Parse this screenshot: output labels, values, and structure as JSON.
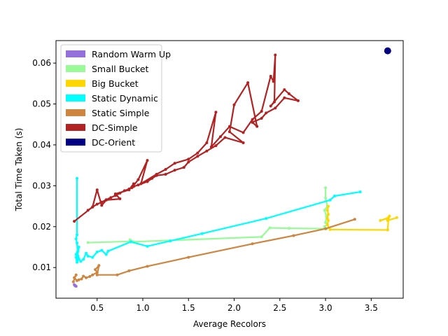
{
  "chart_data": {
    "type": "line",
    "title": "",
    "xlabel": "Average Recolors",
    "ylabel": "Total Time Taken (s)",
    "xlim": [
      0.05,
      3.85
    ],
    "ylim": [
      0.0025,
      0.0655
    ],
    "xticks": [
      0.5,
      1.0,
      1.5,
      2.0,
      2.5,
      3.0,
      3.5
    ],
    "xtick_labels": [
      "0.5",
      "1.0",
      "1.5",
      "2.0",
      "2.5",
      "3.0",
      "3.5"
    ],
    "yticks": [
      0.01,
      0.02,
      0.03,
      0.04,
      0.05,
      0.06
    ],
    "ytick_labels": [
      "0.01",
      "0.02",
      "0.03",
      "0.04",
      "0.05",
      "0.06"
    ],
    "grid": false,
    "legend_position": "top-left",
    "series": [
      {
        "name": "Random Warm Up",
        "color": "#9370DB",
        "x": [
          0.26,
          0.25,
          0.27,
          0.26
        ],
        "y": [
          0.0055,
          0.0058,
          0.0054,
          0.0056
        ]
      },
      {
        "name": "Small Bucket",
        "color": "#98FB98",
        "x": [
          3.0,
          3.0,
          3.02,
          2.99,
          3.01,
          3.0,
          3.02,
          2.99,
          3.01,
          3.0,
          2.6,
          2.39,
          2.3,
          0.9,
          0.86,
          0.9,
          0.86,
          0.4
        ],
        "y": [
          0.0295,
          0.027,
          0.025,
          0.024,
          0.0225,
          0.021,
          0.0205,
          0.02,
          0.0195,
          0.0195,
          0.0196,
          0.0197,
          0.0175,
          0.0163,
          0.0168,
          0.0162,
          0.0164,
          0.0161
        ]
      },
      {
        "name": "Big Bucket",
        "color": "#FFD700",
        "x": [
          3.78,
          3.68,
          3.7,
          3.68,
          3.6,
          3.69,
          3.68,
          3.05,
          3.02,
          3.03,
          3.02,
          3.03,
          3.02,
          3.03
        ],
        "y": [
          0.0222,
          0.0215,
          0.0226,
          0.022,
          0.0215,
          0.0222,
          0.0192,
          0.0193,
          0.0205,
          0.0215,
          0.022,
          0.023,
          0.024,
          0.025
        ]
      },
      {
        "name": "Static Dynamic",
        "color": "#00FFFF",
        "x": [
          3.38,
          3.1,
          3.05,
          2.35,
          1.65,
          1.3,
          1.05,
          0.87,
          0.62,
          0.6,
          0.55,
          0.5,
          0.45,
          0.4,
          0.38,
          0.35,
          0.32,
          0.3,
          0.28,
          0.27,
          0.29,
          0.28,
          0.3,
          0.27,
          0.29,
          0.28,
          0.27,
          0.28,
          0.28
        ],
        "y": [
          0.0285,
          0.0275,
          0.0265,
          0.022,
          0.0183,
          0.0165,
          0.0152,
          0.0163,
          0.014,
          0.0132,
          0.0142,
          0.0138,
          0.0125,
          0.0128,
          0.0135,
          0.012,
          0.0115,
          0.0122,
          0.0113,
          0.0125,
          0.014,
          0.0118,
          0.015,
          0.0132,
          0.0128,
          0.016,
          0.017,
          0.018,
          0.0318
        ]
      },
      {
        "name": "Static Simple",
        "color": "#CD853F",
        "x": [
          3.32,
          3.0,
          2.65,
          2.2,
          1.5,
          1.05,
          0.85,
          0.72,
          0.5,
          0.52,
          0.48,
          0.5,
          0.45,
          0.42,
          0.38,
          0.35,
          0.33,
          0.3,
          0.28,
          0.25,
          0.27,
          0.24
        ],
        "y": [
          0.0218,
          0.0195,
          0.0178,
          0.0158,
          0.0125,
          0.0103,
          0.0092,
          0.0082,
          0.0082,
          0.0105,
          0.0095,
          0.0088,
          0.0082,
          0.0078,
          0.0075,
          0.0079,
          0.0072,
          0.007,
          0.0068,
          0.0075,
          0.0082,
          0.0065
        ]
      },
      {
        "name": "DC-Simple",
        "color": "#B22222",
        "x": [
          0.25,
          0.45,
          0.5,
          0.55,
          0.6,
          0.75,
          0.7,
          0.85,
          0.9,
          0.88,
          0.95,
          1.05,
          0.98,
          1.15,
          1.25,
          1.35,
          1.5,
          1.6,
          1.7,
          1.8,
          1.75,
          1.85,
          1.95,
          2.1,
          2.2,
          2.3,
          2.4,
          2.43,
          2.45,
          2.44,
          2.4,
          2.55,
          2.6,
          2.7,
          2.55,
          2.45,
          2.35,
          2.3,
          2.2,
          2.25,
          2.15,
          2.0,
          1.95,
          2.1,
          1.9,
          1.8,
          1.7,
          1.6,
          1.5,
          1.45,
          1.35,
          1.25,
          1.15,
          1.1,
          1.05,
          0.95,
          0.9,
          0.85,
          0.8,
          0.75,
          0.7,
          0.65,
          0.6,
          0.55,
          0.5,
          0.45,
          0.4
        ],
        "y": [
          0.0213,
          0.0248,
          0.029,
          0.0252,
          0.0265,
          0.0268,
          0.028,
          0.029,
          0.0305,
          0.0295,
          0.0315,
          0.0362,
          0.0305,
          0.0328,
          0.034,
          0.0355,
          0.0365,
          0.038,
          0.0405,
          0.048,
          0.0395,
          0.042,
          0.0445,
          0.043,
          0.0462,
          0.0482,
          0.0568,
          0.0555,
          0.062,
          0.0505,
          0.0495,
          0.0535,
          0.0525,
          0.0508,
          0.0515,
          0.049,
          0.0478,
          0.0465,
          0.0455,
          0.0445,
          0.0552,
          0.0498,
          0.0432,
          0.0405,
          0.0418,
          0.0398,
          0.0385,
          0.0372,
          0.0358,
          0.0345,
          0.0338,
          0.0328,
          0.0325,
          0.0318,
          0.031,
          0.0302,
          0.0298,
          0.0292,
          0.0288,
          0.0282,
          0.0276,
          0.0271,
          0.0266,
          0.026,
          0.0255,
          0.0248,
          0.024
        ]
      },
      {
        "name": "DC-Orient",
        "color": "#000080",
        "x": [
          3.68
        ],
        "y": [
          0.063
        ]
      }
    ]
  }
}
